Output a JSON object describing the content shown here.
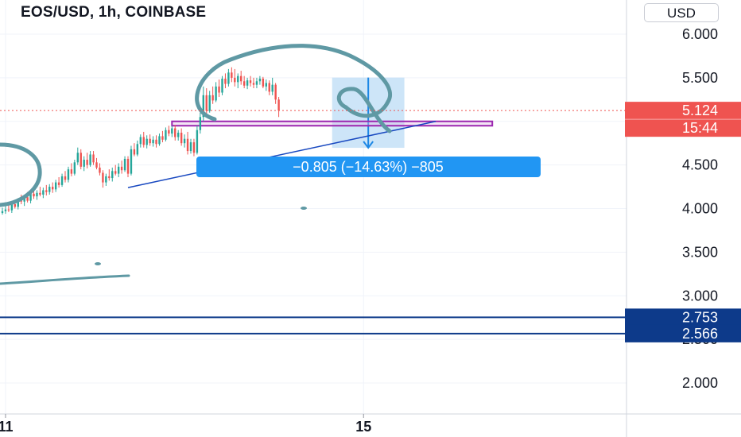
{
  "header": {
    "title": "EOS/USD, 1h, COINBASE",
    "currency": "USD"
  },
  "colors": {
    "up": "#26a69a",
    "down": "#ef5350",
    "price_tag": "#ef5350",
    "level_line": "#0d3a8a",
    "level_tag": "#0d3a8a",
    "trendline": "#1848c0",
    "rectangle": "#9c27b0",
    "measure_fill": "#bcdcf6",
    "measure_line": "#1e88e5",
    "measure_label": "#2196f3",
    "drawing": "#5f99a4"
  },
  "chart_data": {
    "type": "candlestick",
    "symbol": "EOS/USD",
    "interval": "1h",
    "exchange": "COINBASE",
    "y_axis": {
      "ticks": [
        "2.000",
        "2.500",
        "3.000",
        "3.500",
        "4.000",
        "4.500",
        "5.000",
        "5.500",
        "6.000"
      ],
      "ylim": [
        1.63,
        6.25
      ]
    },
    "x_axis": {
      "ticks": [
        {
          "label": "11",
          "candle_index": 1
        },
        {
          "label": "15",
          "candle_index": 115
        }
      ]
    },
    "last_price": "5.124",
    "countdown": "15:44",
    "horizontal_levels": [
      "2.753",
      "2.566"
    ],
    "measure": {
      "label": "−0.805 (−14.63%) −805",
      "from_price": 5.502,
      "to_price": 4.697
    },
    "ohlc": [
      [
        3.95,
        4.01,
        3.93,
        3.97
      ],
      [
        3.97,
        4.03,
        3.94,
        3.99
      ],
      [
        3.99,
        4.06,
        3.96,
        3.98
      ],
      [
        3.98,
        4.08,
        3.95,
        4.05
      ],
      [
        4.05,
        4.1,
        4.0,
        4.02
      ],
      [
        4.02,
        4.12,
        3.99,
        4.1
      ],
      [
        4.1,
        4.16,
        4.05,
        4.08
      ],
      [
        4.08,
        4.15,
        4.03,
        4.13
      ],
      [
        4.13,
        4.19,
        4.07,
        4.09
      ],
      [
        4.09,
        4.2,
        4.06,
        4.17
      ],
      [
        4.17,
        4.23,
        4.11,
        4.14
      ],
      [
        4.14,
        4.21,
        4.1,
        4.18
      ],
      [
        4.18,
        4.25,
        4.14,
        4.16
      ],
      [
        4.16,
        4.24,
        4.12,
        4.21
      ],
      [
        4.21,
        4.27,
        4.15,
        4.19
      ],
      [
        4.19,
        4.28,
        4.16,
        4.25
      ],
      [
        4.25,
        4.3,
        4.18,
        4.22
      ],
      [
        4.22,
        4.33,
        4.19,
        4.3
      ],
      [
        4.3,
        4.36,
        4.24,
        4.27
      ],
      [
        4.27,
        4.4,
        4.25,
        4.37
      ],
      [
        4.37,
        4.43,
        4.3,
        4.33
      ],
      [
        4.33,
        4.48,
        4.3,
        4.45
      ],
      [
        4.45,
        4.52,
        4.37,
        4.4
      ],
      [
        4.4,
        4.56,
        4.38,
        4.53
      ],
      [
        4.53,
        4.7,
        4.5,
        4.64
      ],
      [
        4.64,
        4.68,
        4.45,
        4.48
      ],
      [
        4.48,
        4.6,
        4.43,
        4.56
      ],
      [
        4.56,
        4.64,
        4.46,
        4.5
      ],
      [
        4.5,
        4.66,
        4.48,
        4.62
      ],
      [
        4.62,
        4.66,
        4.5,
        4.53
      ],
      [
        4.53,
        4.58,
        4.45,
        4.47
      ],
      [
        4.47,
        4.52,
        4.38,
        4.41
      ],
      [
        4.41,
        4.44,
        4.24,
        4.3
      ],
      [
        4.3,
        4.4,
        4.26,
        4.37
      ],
      [
        4.37,
        4.45,
        4.32,
        4.35
      ],
      [
        4.35,
        4.47,
        4.31,
        4.43
      ],
      [
        4.43,
        4.5,
        4.38,
        4.4
      ],
      [
        4.4,
        4.52,
        4.36,
        4.48
      ],
      [
        4.48,
        4.55,
        4.4,
        4.44
      ],
      [
        4.44,
        4.6,
        4.42,
        4.57
      ],
      [
        4.57,
        4.6,
        4.36,
        4.4
      ],
      [
        4.4,
        4.72,
        4.38,
        4.68
      ],
      [
        4.68,
        4.75,
        4.6,
        4.62
      ],
      [
        4.62,
        4.78,
        4.6,
        4.74
      ],
      [
        4.74,
        4.85,
        4.7,
        4.82
      ],
      [
        4.82,
        4.88,
        4.7,
        4.73
      ],
      [
        4.73,
        4.84,
        4.69,
        4.8
      ],
      [
        4.8,
        4.85,
        4.72,
        4.75
      ],
      [
        4.75,
        4.83,
        4.71,
        4.79
      ],
      [
        4.79,
        4.84,
        4.7,
        4.74
      ],
      [
        4.74,
        4.86,
        4.72,
        4.83
      ],
      [
        4.83,
        4.89,
        4.76,
        4.79
      ],
      [
        4.79,
        4.93,
        4.77,
        4.9
      ],
      [
        4.9,
        4.95,
        4.83,
        4.86
      ],
      [
        4.86,
        4.95,
        4.82,
        4.92
      ],
      [
        4.92,
        4.96,
        4.78,
        4.82
      ],
      [
        4.82,
        4.9,
        4.78,
        4.87
      ],
      [
        4.87,
        4.92,
        4.72,
        4.75
      ],
      [
        4.75,
        4.85,
        4.7,
        4.8
      ],
      [
        4.8,
        4.88,
        4.62,
        4.66
      ],
      [
        4.66,
        4.8,
        4.63,
        4.76
      ],
      [
        4.76,
        4.8,
        4.6,
        4.64
      ],
      [
        4.64,
        4.95,
        4.62,
        4.9
      ],
      [
        4.9,
        5.1,
        4.86,
        5.05
      ],
      [
        5.05,
        5.4,
        5.0,
        5.3
      ],
      [
        5.3,
        5.38,
        5.06,
        5.12
      ],
      [
        5.12,
        5.35,
        5.1,
        5.3
      ],
      [
        5.3,
        5.4,
        5.2,
        5.24
      ],
      [
        5.24,
        5.45,
        5.22,
        5.4
      ],
      [
        5.4,
        5.48,
        5.28,
        5.33
      ],
      [
        5.33,
        5.52,
        5.3,
        5.49
      ],
      [
        5.49,
        5.55,
        5.38,
        5.43
      ],
      [
        5.43,
        5.6,
        5.4,
        5.56
      ],
      [
        5.56,
        5.62,
        5.45,
        5.5
      ],
      [
        5.5,
        5.6,
        5.4,
        5.45
      ],
      [
        5.45,
        5.55,
        5.38,
        5.52
      ],
      [
        5.52,
        5.58,
        5.42,
        5.46
      ],
      [
        5.46,
        5.52,
        5.38,
        5.41
      ],
      [
        5.41,
        5.5,
        5.37,
        5.47
      ],
      [
        5.47,
        5.52,
        5.4,
        5.44
      ],
      [
        5.44,
        5.5,
        5.38,
        5.42
      ],
      [
        5.42,
        5.5,
        5.38,
        5.46
      ],
      [
        5.46,
        5.52,
        5.42,
        5.49
      ],
      [
        5.49,
        5.51,
        5.38,
        5.4
      ],
      [
        5.4,
        5.48,
        5.35,
        5.44
      ],
      [
        5.44,
        5.47,
        5.3,
        5.34
      ],
      [
        5.34,
        5.5,
        5.3,
        5.42
      ],
      [
        5.42,
        5.44,
        5.2,
        5.25
      ],
      [
        5.25,
        5.28,
        5.05,
        5.124
      ]
    ]
  }
}
